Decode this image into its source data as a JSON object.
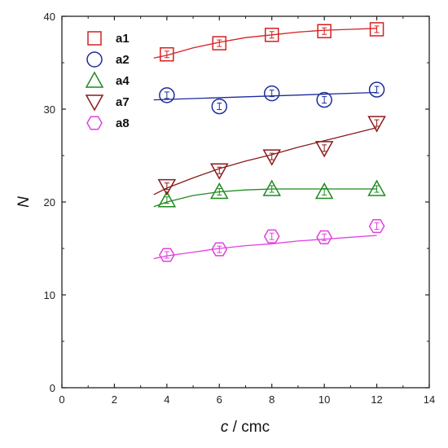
{
  "chart_data": {
    "type": "scatter",
    "xlabel_var": "c",
    "xlabel_unit": " / cmc",
    "ylabel": "N",
    "xlim": [
      0,
      14
    ],
    "ylim": [
      0,
      40
    ],
    "xticks": [
      0,
      2,
      4,
      6,
      8,
      10,
      12,
      14
    ],
    "yticks": [
      0,
      10,
      20,
      30,
      40
    ],
    "grid": false,
    "legend_position": "top-left",
    "series": [
      {
        "name": "a1",
        "color": "#d62020",
        "marker": "square",
        "x": [
          4,
          6,
          8,
          10,
          12
        ],
        "y": [
          35.9,
          37.1,
          38.0,
          38.4,
          38.6
        ],
        "fit": {
          "x": [
            3.5,
            4,
            5,
            6,
            7,
            8,
            9,
            10,
            11,
            12
          ],
          "y": [
            35.5,
            35.8,
            36.6,
            37.2,
            37.7,
            38.0,
            38.3,
            38.5,
            38.6,
            38.7
          ]
        }
      },
      {
        "name": "a2",
        "color": "#1c2c9c",
        "marker": "circle",
        "x": [
          4,
          6,
          8,
          10,
          12
        ],
        "y": [
          31.5,
          30.3,
          31.7,
          31.0,
          32.1
        ],
        "fit": {
          "x": [
            3.5,
            12
          ],
          "y": [
            31.0,
            31.8
          ]
        }
      },
      {
        "name": "a4",
        "color": "#1f8a1f",
        "marker": "triangle-up",
        "x": [
          4,
          6,
          8,
          10,
          12
        ],
        "y": [
          20.2,
          21.1,
          21.4,
          21.1,
          21.4
        ],
        "fit": {
          "x": [
            3.5,
            4,
            5,
            6,
            7,
            8,
            9,
            10,
            11,
            12
          ],
          "y": [
            19.5,
            20.0,
            20.7,
            21.1,
            21.3,
            21.4,
            21.4,
            21.4,
            21.4,
            21.4
          ]
        }
      },
      {
        "name": "a7",
        "color": "#8b1a1a",
        "marker": "triangle-down",
        "x": [
          4,
          6,
          8,
          10,
          12
        ],
        "y": [
          21.7,
          23.4,
          24.9,
          25.8,
          28.5
        ],
        "fit": {
          "x": [
            3.5,
            4,
            5,
            6,
            7,
            8,
            9,
            10,
            11,
            12
          ],
          "y": [
            20.8,
            21.5,
            22.6,
            23.6,
            24.4,
            25.1,
            25.9,
            26.6,
            27.3,
            28.0
          ]
        }
      },
      {
        "name": "a8",
        "color": "#e040e0",
        "marker": "hexagon",
        "x": [
          4,
          6,
          8,
          10,
          12
        ],
        "y": [
          14.3,
          14.9,
          16.3,
          16.2,
          17.4
        ],
        "fit": {
          "x": [
            3.5,
            4,
            5,
            6,
            7,
            8,
            9,
            10,
            11,
            12
          ],
          "y": [
            13.9,
            14.2,
            14.6,
            15.0,
            15.3,
            15.5,
            15.8,
            16.0,
            16.2,
            16.4
          ]
        }
      }
    ]
  }
}
